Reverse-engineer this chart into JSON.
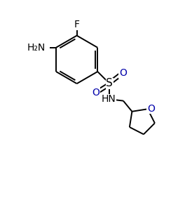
{
  "background_color": "#ffffff",
  "bond_color": "#000000",
  "atom_color_N": "#000000",
  "atom_color_O": "#0000aa",
  "atom_color_F": "#000000",
  "figsize": [
    2.74,
    2.82
  ],
  "dpi": 100,
  "label_F": "F",
  "label_NH2": "H₂N",
  "label_S": "S",
  "label_O": "O",
  "label_NH": "HN",
  "label_ring_O": "O",
  "font_size_atoms": 10,
  "lw": 1.4
}
